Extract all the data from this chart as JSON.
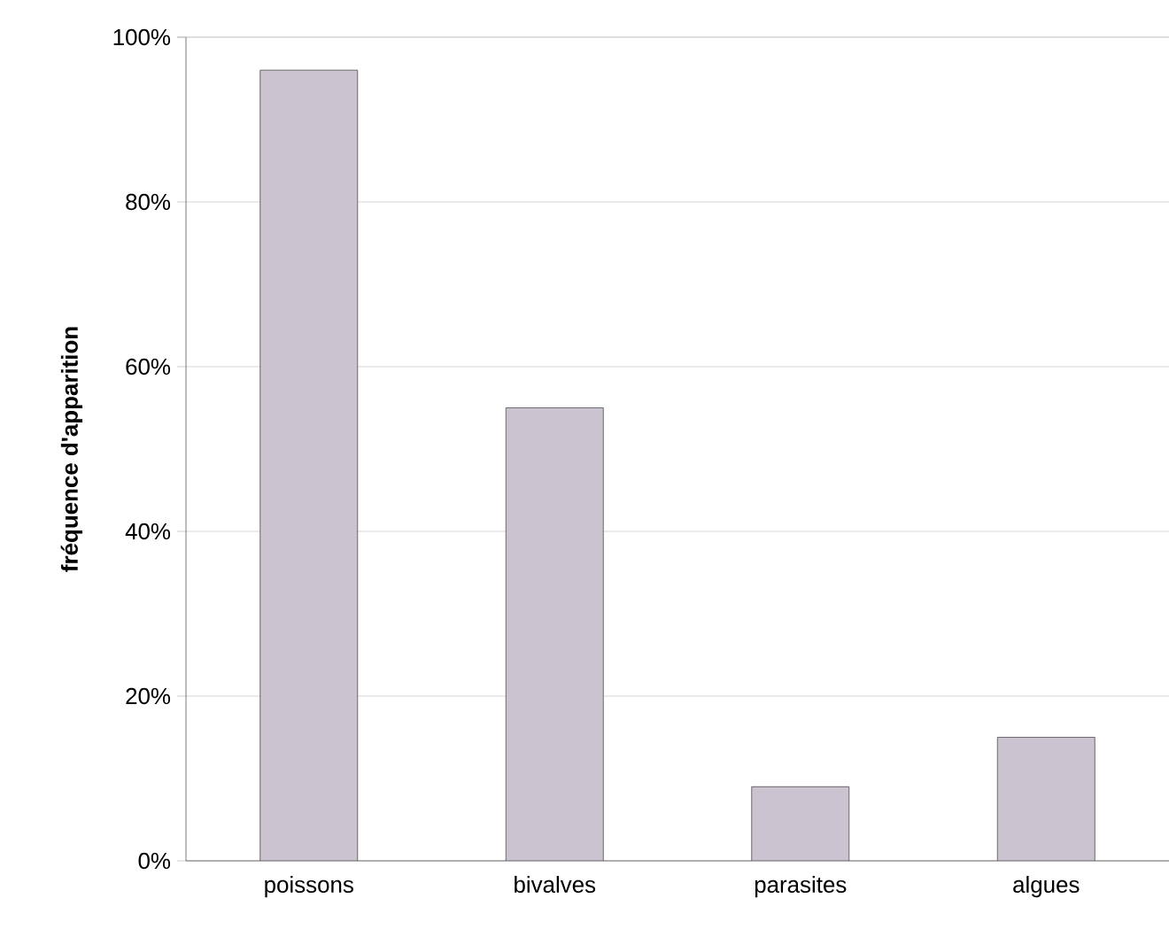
{
  "chart_data": {
    "type": "bar",
    "ylabel": "fréquence d'apparition",
    "categories": [
      "poissons",
      "bivalves",
      "parasites",
      "algues"
    ],
    "values": [
      96,
      55,
      9,
      15
    ],
    "color": "#cbc3cf",
    "ylim": [
      0,
      100
    ],
    "yticks": [
      {
        "value": 0,
        "label": "0%"
      },
      {
        "value": 20,
        "label": "20%"
      },
      {
        "value": 40,
        "label": "40%"
      },
      {
        "value": 60,
        "label": "60%"
      },
      {
        "value": 80,
        "label": "80%"
      },
      {
        "value": 100,
        "label": "100%"
      }
    ],
    "grid": "y"
  }
}
